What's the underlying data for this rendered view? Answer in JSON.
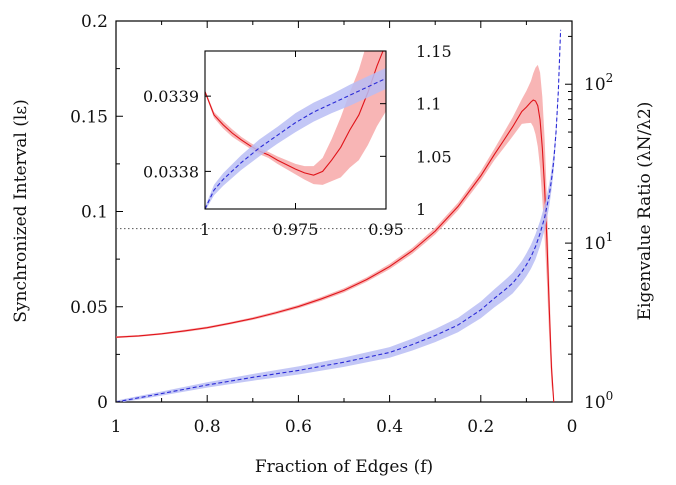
{
  "chart_data": {
    "type": "line",
    "xlabel": "Fraction of Edges (f)",
    "ylabel_left": "Synchronized Interval (lε)",
    "ylabel_right": "Eigenvalue Ratio (λN/λ2)",
    "xlim": [
      1,
      0
    ],
    "ylim_left": [
      0,
      0.2
    ],
    "ylim_right": [
      1,
      250
    ],
    "right_axis_scale": "log",
    "x_ticks": [
      "1",
      "0.8",
      "0.6",
      "0.4",
      "0.2",
      "0"
    ],
    "y_ticks_left": [
      "0",
      "0.05",
      "0.1",
      "0.15",
      "0.2"
    ],
    "y_ticks_right_base": [
      "10",
      "10",
      "10"
    ],
    "y_ticks_right_exp": [
      "0",
      "1",
      "2"
    ],
    "reference_line": {
      "y": 0.091,
      "style": "dotted",
      "color": "#555555"
    },
    "series": [
      {
        "axis": "left",
        "color": "#e0141a",
        "band_color": "#f7a8a8",
        "style": "solid",
        "x": [
          1.0,
          0.95,
          0.9,
          0.85,
          0.8,
          0.75,
          0.7,
          0.65,
          0.6,
          0.55,
          0.5,
          0.45,
          0.4,
          0.35,
          0.3,
          0.25,
          0.2,
          0.17,
          0.15,
          0.13,
          0.11,
          0.1,
          0.09,
          0.085,
          0.08,
          0.075,
          0.07,
          0.065,
          0.06,
          0.055,
          0.05,
          0.045,
          0.04
        ],
        "y": [
          0.034,
          0.0347,
          0.0358,
          0.0373,
          0.039,
          0.0413,
          0.0438,
          0.0468,
          0.0501,
          0.0541,
          0.0586,
          0.0643,
          0.0711,
          0.0794,
          0.0897,
          0.1026,
          0.1187,
          0.13,
          0.1372,
          0.1445,
          0.1525,
          0.1548,
          0.1575,
          0.1585,
          0.158,
          0.1555,
          0.148,
          0.133,
          0.112,
          0.085,
          0.05,
          0.018,
          0.0
        ],
        "band_half_width": [
          0.0005,
          0.0005,
          0.0005,
          0.0006,
          0.0006,
          0.0006,
          0.0007,
          0.0008,
          0.0009,
          0.001,
          0.0011,
          0.0012,
          0.0014,
          0.0016,
          0.0018,
          0.002,
          0.0025,
          0.003,
          0.004,
          0.005,
          0.0065,
          0.0085,
          0.011,
          0.014,
          0.0175,
          0.0215,
          0.025,
          0.027,
          0.026,
          0.022,
          0.016,
          0.009,
          0.003
        ]
      },
      {
        "axis": "right",
        "color": "#2a2ad6",
        "band_color": "#b9bdf5",
        "style": "dashed",
        "x": [
          1.0,
          0.9,
          0.8,
          0.7,
          0.6,
          0.5,
          0.4,
          0.35,
          0.3,
          0.25,
          0.2,
          0.17,
          0.15,
          0.13,
          0.11,
          0.1,
          0.09,
          0.08,
          0.07,
          0.06,
          0.05,
          0.045,
          0.04,
          0.035,
          0.03,
          0.025
        ],
        "y": [
          1.0,
          1.13,
          1.28,
          1.43,
          1.58,
          1.78,
          2.05,
          2.3,
          2.62,
          3.05,
          3.8,
          4.5,
          5.0,
          5.6,
          6.6,
          7.3,
          8.2,
          9.5,
          11.5,
          14.5,
          20.0,
          25.0,
          33.0,
          50.0,
          90.0,
          220.0
        ],
        "band_factor": [
          1.02,
          1.03,
          1.04,
          1.05,
          1.06,
          1.07,
          1.08,
          1.09,
          1.1,
          1.11,
          1.13,
          1.14,
          1.15,
          1.16,
          1.17,
          1.18,
          1.19,
          1.2,
          1.2,
          1.2,
          1.18,
          1.16,
          1.14,
          1.1,
          1.06,
          1.03
        ]
      }
    ],
    "inset": {
      "xlim": [
        1,
        0.95
      ],
      "ylim_left": [
        0.03375,
        0.03396
      ],
      "ylim_right": [
        1.0,
        1.15
      ],
      "x_ticks": [
        "1",
        "0.975",
        "0.95"
      ],
      "y_ticks_left": [
        "0.0338",
        "0.0339"
      ],
      "y_ticks_right": [
        "1",
        "1.05",
        "1.1",
        "1.15"
      ],
      "series": [
        {
          "axis": "left",
          "color": "#e0141a",
          "band_color": "#f7a8a8",
          "style": "solid",
          "x": [
            1.0,
            0.9975,
            0.995,
            0.9925,
            0.99,
            0.9875,
            0.985,
            0.9825,
            0.98,
            0.9775,
            0.975,
            0.9725,
            0.97,
            0.9675,
            0.965,
            0.9625,
            0.96,
            0.9575,
            0.955,
            0.9525,
            0.95
          ],
          "y": [
            0.033906,
            0.033875,
            0.033862,
            0.033851,
            0.033842,
            0.033834,
            0.033827,
            0.033822,
            0.033815,
            0.033809,
            0.033803,
            0.033798,
            0.033795,
            0.0338,
            0.033815,
            0.033832,
            0.033855,
            0.033875,
            0.033905,
            0.03394,
            0.03397
          ],
          "band_half_width": [
            2e-06,
            4e-06,
            5e-06,
            5e-06,
            4e-06,
            4e-06,
            4e-06,
            4e-06,
            5e-06,
            6e-06,
            7e-06,
            9e-06,
            1.2e-05,
            1.8e-05,
            2.8e-05,
            4e-05,
            5e-05,
            6e-05,
            7e-05,
            8e-05,
            9e-05
          ]
        },
        {
          "axis": "right",
          "color": "#2a2ad6",
          "band_color": "#b9bdf5",
          "style": "dashed",
          "x": [
            1.0,
            0.9975,
            0.995,
            0.99,
            0.985,
            0.98,
            0.975,
            0.97,
            0.965,
            0.96,
            0.955,
            0.95
          ],
          "y": [
            1.0,
            1.018,
            1.028,
            1.044,
            1.058,
            1.07,
            1.082,
            1.092,
            1.1,
            1.108,
            1.116,
            1.124
          ],
          "band_half_width": [
            0.002,
            0.005,
            0.006,
            0.007,
            0.008,
            0.008,
            0.009,
            0.009,
            0.009,
            0.01,
            0.01,
            0.01
          ]
        }
      ]
    }
  }
}
